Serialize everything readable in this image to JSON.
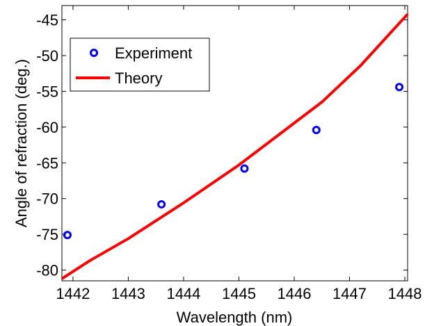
{
  "chart_data": {
    "type": "line",
    "title": "",
    "xlabel": "Wavelength (nm)",
    "ylabel": "Angle of refraction (deg.)",
    "xlim": [
      1441.8,
      1448.05
    ],
    "ylim": [
      -81.5,
      -43
    ],
    "xticks": [
      1442,
      1443,
      1444,
      1445,
      1446,
      1447,
      1448
    ],
    "yticks": [
      -80,
      -75,
      -70,
      -65,
      -60,
      -55,
      -50,
      -45
    ],
    "grid": false,
    "legend_position": "top-left",
    "series": [
      {
        "name": "Experiment",
        "kind": "scatter",
        "color": "#0000ff",
        "marker": "circle-open",
        "x": [
          1441.9,
          1443.6,
          1445.1,
          1446.4,
          1447.9
        ],
        "y": [
          -75.1,
          -70.8,
          -65.8,
          -60.4,
          -54.4
        ]
      },
      {
        "name": "Theory",
        "kind": "line",
        "color": "#ff0000",
        "x": [
          1441.8,
          1442.3,
          1443.0,
          1444.0,
          1445.0,
          1446.5,
          1447.2,
          1448.05
        ],
        "y": [
          -81.2,
          -78.7,
          -75.6,
          -70.6,
          -65.3,
          -56.5,
          -51.4,
          -44.2
        ]
      }
    ]
  }
}
